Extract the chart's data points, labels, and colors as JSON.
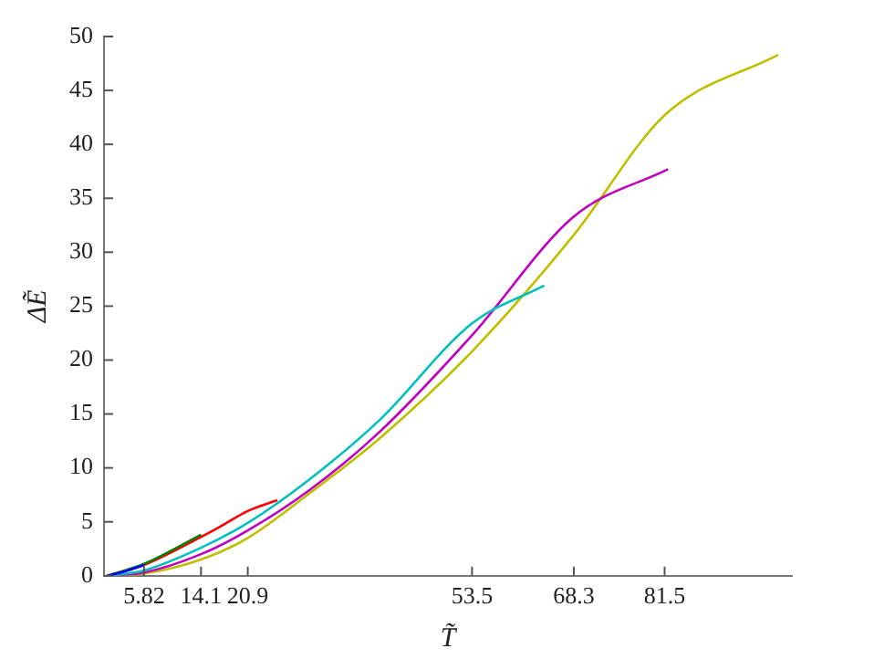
{
  "chart_data": {
    "type": "line",
    "xlabel": "T̃",
    "ylabel": "ΔẼ",
    "xlim": [
      0,
      100
    ],
    "xticks": [
      5.82,
      14.1,
      20.9,
      53.5,
      68.3,
      81.5
    ],
    "ylim": [
      0,
      50
    ],
    "yticks": [
      0,
      5,
      10,
      15,
      20,
      25,
      30,
      35,
      40,
      45,
      50
    ],
    "grid": false,
    "legend": false,
    "marker": "none",
    "line_style": "solid",
    "series": [
      {
        "color": "#0000ff",
        "x": [
          0.5,
          3,
          5.82
        ],
        "values": [
          0,
          0.4,
          1.0
        ]
      },
      {
        "color": "#007f00",
        "x": [
          0.5,
          5.82,
          10,
          14.1
        ],
        "values": [
          0,
          1.1,
          2.4,
          3.8
        ]
      },
      {
        "color": "#ff0000",
        "x": [
          0.5,
          5.82,
          14.1,
          17,
          20.9,
          25.2
        ],
        "values": [
          0,
          1.0,
          3.6,
          4.6,
          6.0,
          7.0
        ]
      },
      {
        "color": "#00bfbf",
        "x": [
          0.5,
          5.82,
          14.1,
          20.9,
          30,
          40,
          53.5,
          64
        ],
        "values": [
          0,
          0.5,
          2.6,
          4.9,
          9.0,
          14.4,
          23.4,
          26.9
        ]
      },
      {
        "color": "#bf00bf",
        "x": [
          0.5,
          5.82,
          14.1,
          20.9,
          30,
          40,
          53.5,
          68.3,
          82
        ],
        "values": [
          0,
          0.3,
          2.0,
          4.2,
          8.0,
          13.3,
          22.3,
          33.3,
          37.7
        ]
      },
      {
        "color": "#bfbf00",
        "x": [
          0.5,
          5.82,
          14.1,
          20.9,
          30,
          40,
          53.5,
          68.3,
          81.5,
          98
        ],
        "values": [
          0,
          0.2,
          1.5,
          3.5,
          7.7,
          12.7,
          20.8,
          31.6,
          42.7,
          48.3
        ]
      }
    ]
  }
}
